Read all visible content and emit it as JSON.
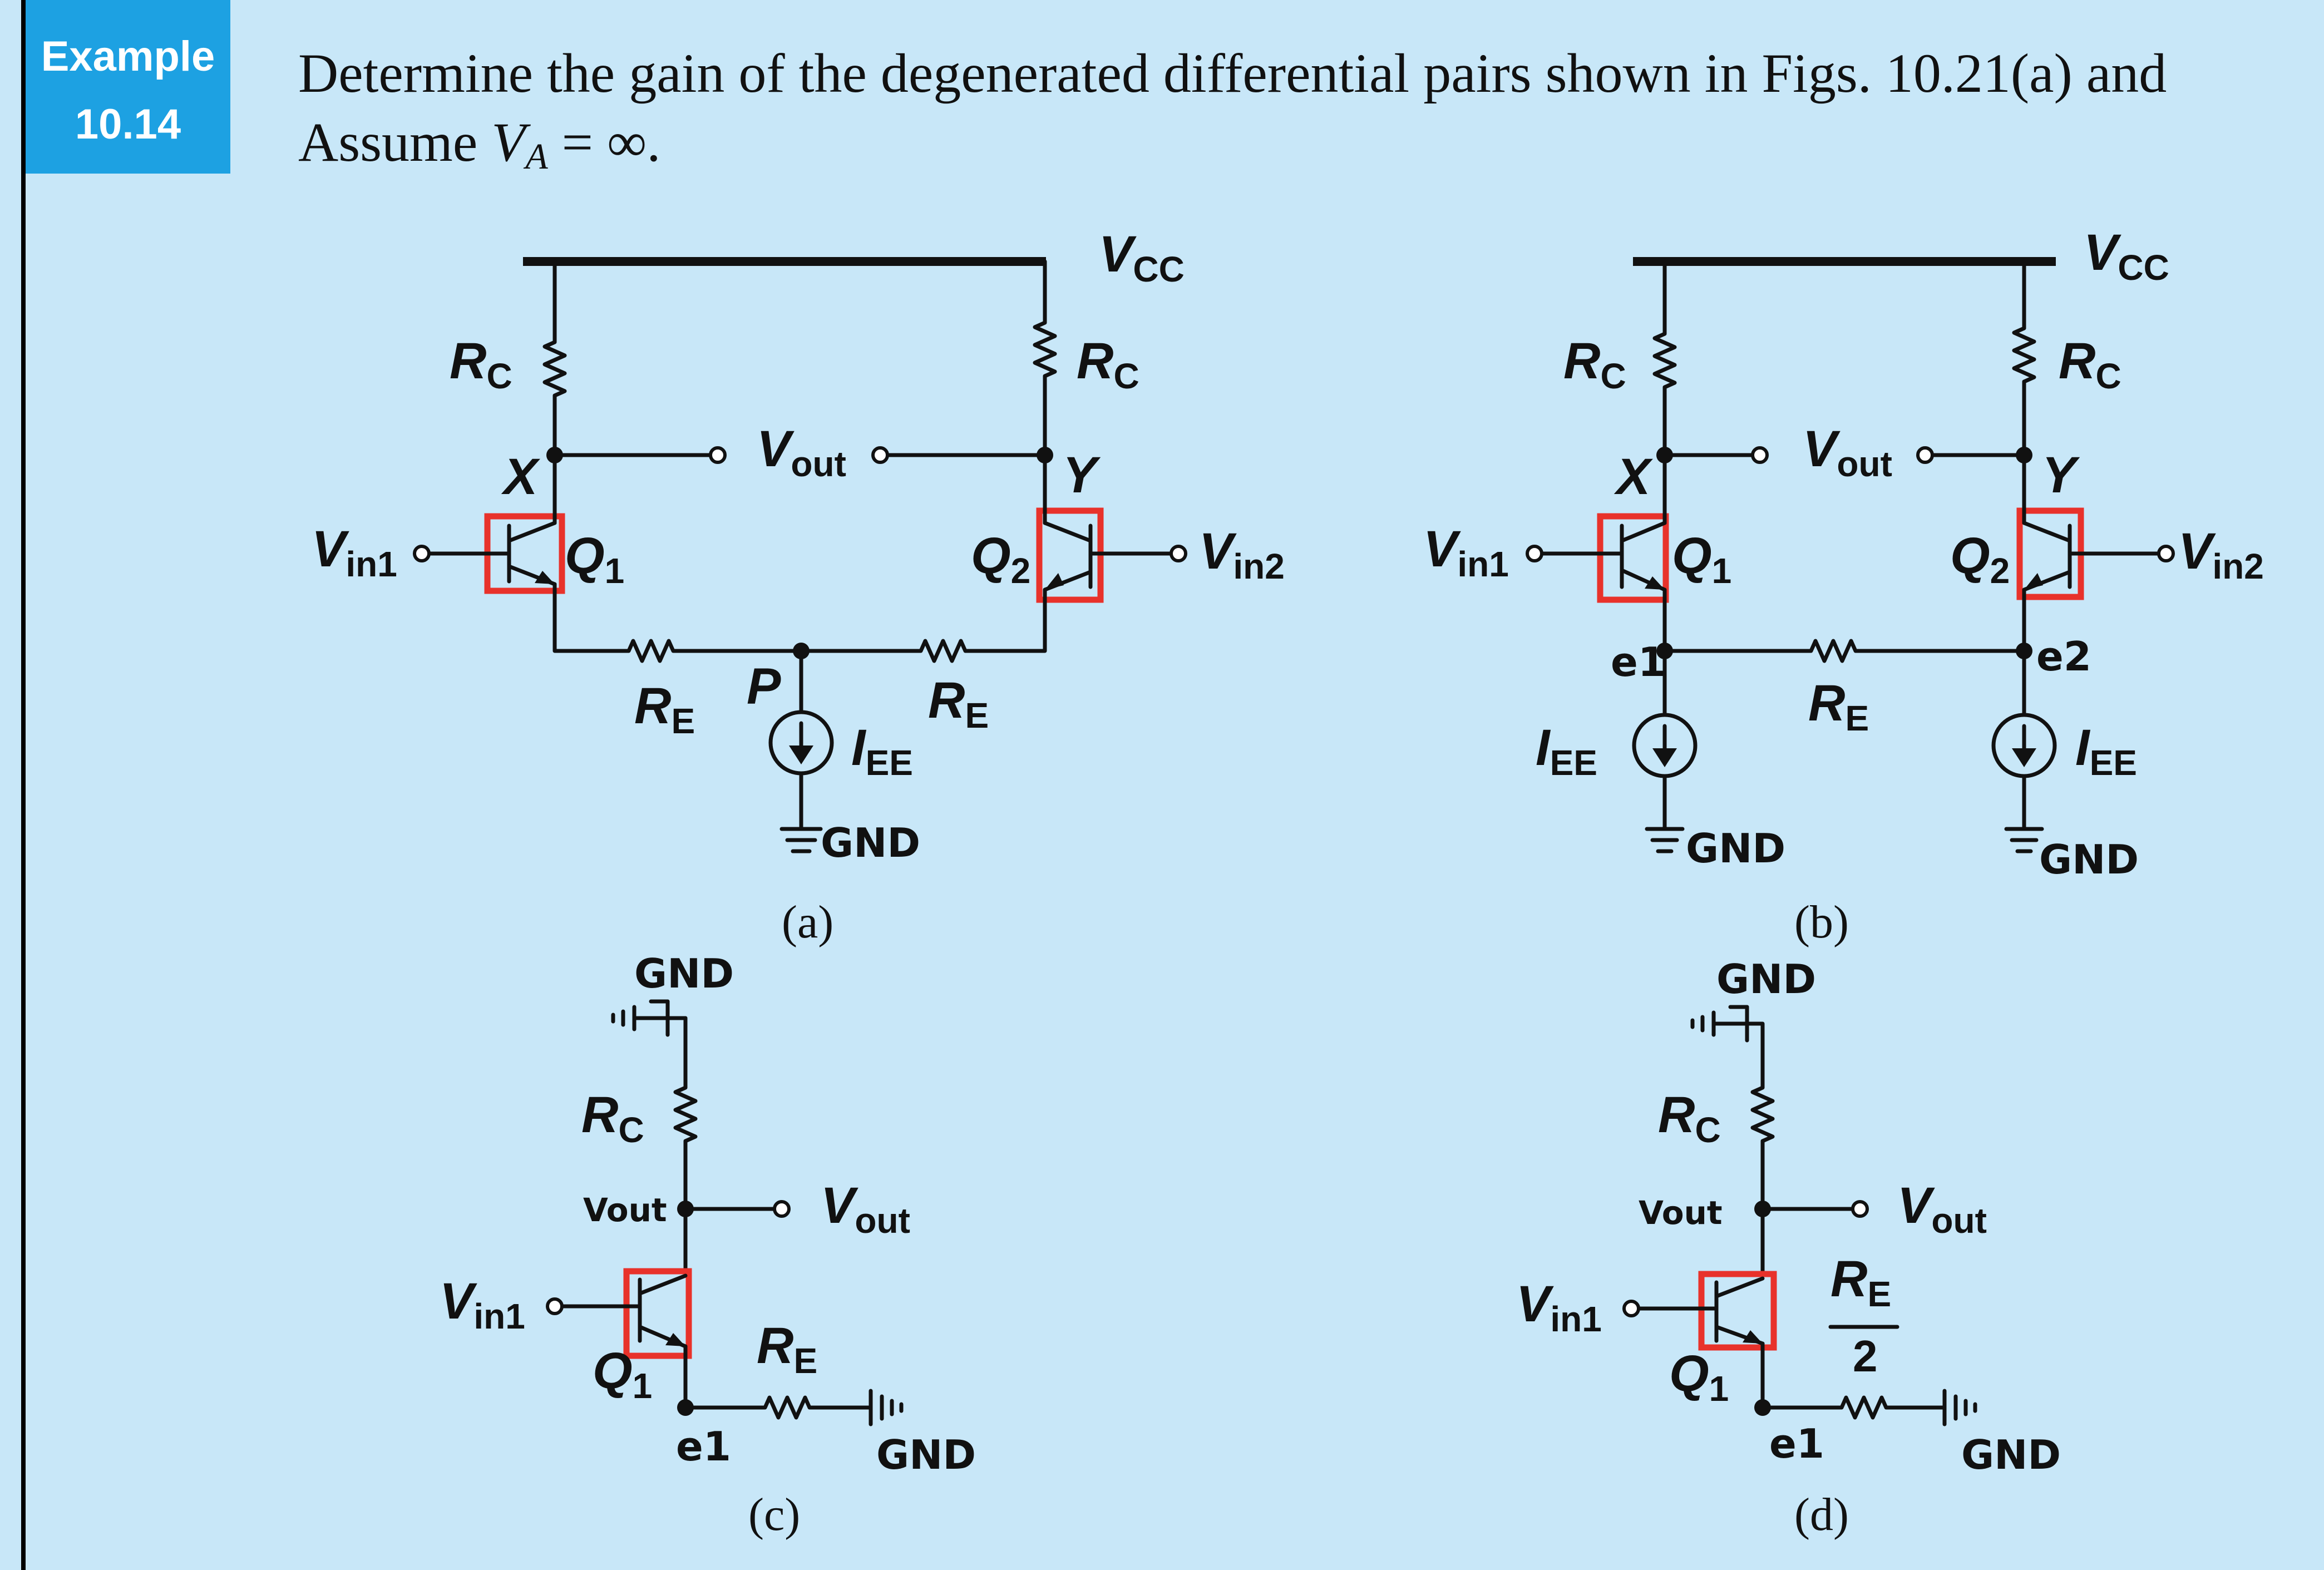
{
  "example": {
    "label": "Example",
    "number": "10.14"
  },
  "problem": {
    "line1": "Determine the gain of the degenerated differential pairs shown in Figs. 10.21(a) and",
    "line2_prefix": "Assume ",
    "line2_var": "V",
    "line2_sub": "A",
    "line2_suffix": " = ∞."
  },
  "labels": {
    "vcc_main": "V",
    "vcc_sub": "CC",
    "rc_main": "R",
    "rc_sub": "C",
    "re_main": "R",
    "re_sub": "E",
    "re_half_num_main": "R",
    "re_half_num_sub": "E",
    "re_half_den": "2",
    "vout_main": "V",
    "vout_sub": "out",
    "vin1_main": "V",
    "vin1_sub": "in1",
    "vin2_main": "V",
    "vin2_sub": "in2",
    "q_main": "Q",
    "q1_sub": "1",
    "q2_sub": "2",
    "iee_main": "I",
    "iee_sub": "EE",
    "node_x": "X",
    "node_y": "Y",
    "node_p": "P",
    "node_e1": "e1",
    "node_e2": "e2",
    "gnd": "GND",
    "vout_hand": "Vout"
  },
  "captions": {
    "a": "(a)",
    "b": "(b)",
    "c": "(c)",
    "d": "(d)"
  }
}
